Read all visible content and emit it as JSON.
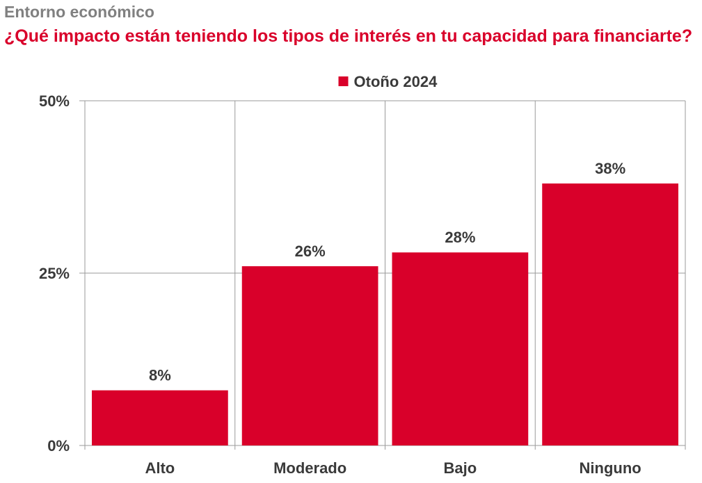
{
  "header": {
    "kicker": "Entorno económico",
    "title": "¿Qué impacto están teniendo los tipos de interés en tu capacidad para financiarte?"
  },
  "colors": {
    "bar": "#d9002a",
    "title": "#d9002a",
    "kicker": "#808080",
    "grid": "#9a9a9a",
    "text": "#3a3a3a"
  },
  "chart_data": {
    "type": "bar",
    "title": "¿Qué impacto están teniendo los tipos de interés en tu capacidad para financiarte?",
    "categories": [
      "Alto",
      "Moderado",
      "Bajo",
      "Ninguno"
    ],
    "series": [
      {
        "name": "Otoño 2024",
        "values": [
          8,
          26,
          28,
          38
        ],
        "labels": [
          "8%",
          "26%",
          "28%",
          "38%"
        ]
      }
    ],
    "ylim": [
      0,
      50
    ],
    "yticks": [
      0,
      25,
      50
    ],
    "ytick_labels": [
      "0%",
      "25%",
      "50%"
    ],
    "xlabel": "",
    "ylabel": "",
    "grid": true,
    "legend_position": "top-center"
  }
}
